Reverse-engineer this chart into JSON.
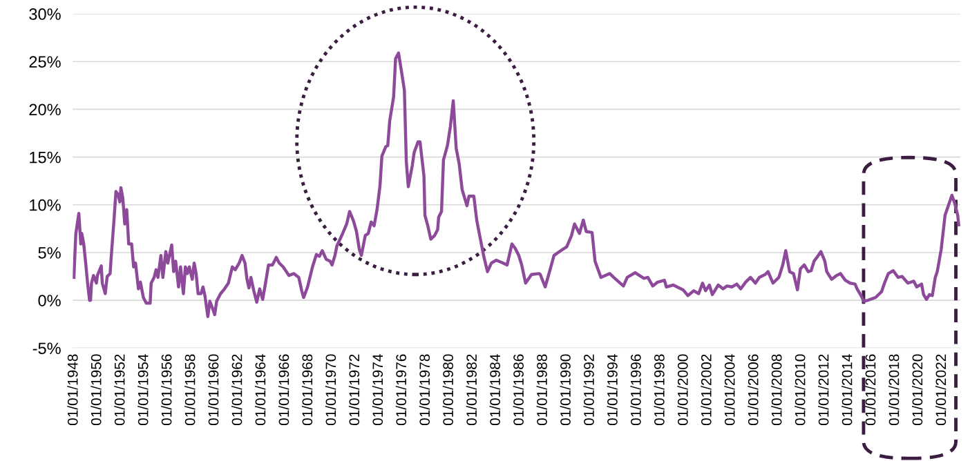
{
  "chart_data": {
    "type": "line",
    "x": [
      "1948-01",
      "1948-02",
      "1948-03",
      "1948-06",
      "1948-08",
      "1948-09",
      "1948-11",
      "1949-01",
      "1949-03",
      "1949-05",
      "1949-06",
      "1949-07",
      "1949-09",
      "1949-12",
      "1950-01",
      "1950-05",
      "1950-06",
      "1950-09",
      "1950-11",
      "1951-02",
      "1951-03",
      "1951-06",
      "1951-08",
      "1951-10",
      "1951-12",
      "1952-01",
      "1952-03",
      "1952-05",
      "1952-07",
      "1952-09",
      "1952-12",
      "1953-02",
      "1953-04",
      "1953-07",
      "1953-09",
      "1953-12",
      "1954-03",
      "1954-07",
      "1954-08",
      "1954-11",
      "1955-01",
      "1955-03",
      "1955-06",
      "1955-08",
      "1955-11",
      "1956-01",
      "1956-05",
      "1956-07",
      "1956-09",
      "1956-12",
      "1957-02",
      "1957-05",
      "1957-07",
      "1957-09",
      "1957-11",
      "1958-02",
      "1958-04",
      "1958-06",
      "1958-08",
      "1958-11",
      "1959-01",
      "1959-03",
      "1959-06",
      "1959-08",
      "1959-11",
      "1960-01",
      "1960-03",
      "1960-07",
      "1960-11",
      "1961-03",
      "1961-07",
      "1961-10",
      "1962-02",
      "1962-05",
      "1962-08",
      "1962-10",
      "1962-12",
      "1963-02",
      "1963-05",
      "1963-08",
      "1963-11",
      "1964-02",
      "1964-05",
      "1964-08",
      "1964-12",
      "1965-04",
      "1965-07",
      "1965-11",
      "1966-05",
      "1966-10",
      "1967-03",
      "1967-06",
      "1967-08",
      "1967-12",
      "1968-05",
      "1968-09",
      "1968-12",
      "1969-03",
      "1969-07",
      "1969-11",
      "1970-01",
      "1970-04",
      "1970-06",
      "1970-11",
      "1971-04",
      "1971-07",
      "1971-11",
      "1972-02",
      "1972-05",
      "1972-07",
      "1972-11",
      "1973-02",
      "1973-05",
      "1973-08",
      "1973-11",
      "1974-02",
      "1974-04",
      "1974-08",
      "1974-10",
      "1974-12",
      "1975-04",
      "1975-06",
      "1975-09",
      "1975-12",
      "1976-03",
      "1976-05",
      "1976-07",
      "1976-11",
      "1977-01",
      "1977-05",
      "1977-07",
      "1977-11",
      "1977-12",
      "1978-03",
      "1978-06",
      "1978-10",
      "1979-01",
      "1979-02",
      "1979-05",
      "1979-07",
      "1979-11",
      "1980-02",
      "1980-05",
      "1980-08",
      "1980-11",
      "1981-02",
      "1981-07",
      "1981-09",
      "1982-02",
      "1982-05",
      "1982-08",
      "1982-12",
      "1983-04",
      "1983-08",
      "1984-01",
      "1984-08",
      "1984-12",
      "1985-05",
      "1985-08",
      "1985-12",
      "1986-03",
      "1986-07",
      "1987-01",
      "1987-09",
      "1987-10",
      "1988-03",
      "1988-08",
      "1988-12",
      "1989-07",
      "1990-01",
      "1990-06",
      "1990-09",
      "1991-02",
      "1991-06",
      "1991-09",
      "1992-03",
      "1992-06",
      "1992-12",
      "1993-09",
      "1994-01",
      "1994-11",
      "1995-03",
      "1995-11",
      "1996-08",
      "1996-12",
      "1997-05",
      "1997-10",
      "1998-05",
      "1998-07",
      "1999-02",
      "1999-12",
      "2000-05",
      "2000-11",
      "2001-04",
      "2001-08",
      "2001-11",
      "2002-03",
      "2002-06",
      "2002-12",
      "2003-05",
      "2003-09",
      "2004-02",
      "2004-07",
      "2004-11",
      "2005-04",
      "2005-09",
      "2006-02",
      "2006-06",
      "2006-12",
      "2007-03",
      "2007-08",
      "2008-02",
      "2008-06",
      "2008-09",
      "2009-01",
      "2009-05",
      "2009-09",
      "2009-12",
      "2010-04",
      "2010-08",
      "2010-11",
      "2011-02",
      "2011-05",
      "2011-09",
      "2012-01",
      "2012-03",
      "2012-08",
      "2013-01",
      "2013-05",
      "2013-10",
      "2014-03",
      "2014-08",
      "2014-10",
      "2015-02",
      "2015-05",
      "2015-09",
      "2016-05",
      "2016-11",
      "2017-02",
      "2017-06",
      "2017-11",
      "2018-04",
      "2018-08",
      "2019-02",
      "2019-08",
      "2019-11",
      "2020-04",
      "2020-06",
      "2020-09",
      "2020-12",
      "2021-03",
      "2021-06",
      "2021-08",
      "2021-12",
      "2022-04",
      "2022-08",
      "2022-11",
      "2023-02",
      "2023-05",
      "2023-06"
    ],
    "series": [
      {
        "color": "#8e4a9a",
        "values": [
          2.4,
          4.9,
          7.0,
          9.1,
          5.9,
          7.0,
          5.9,
          3.9,
          1.8,
          0.0,
          0.0,
          1.8,
          2.6,
          1.8,
          2.6,
          3.6,
          1.8,
          0.7,
          2.5,
          2.8,
          4.3,
          8.4,
          11.4,
          11.1,
          10.3,
          11.8,
          10.7,
          8.0,
          9.5,
          5.9,
          5.9,
          3.5,
          3.9,
          1.2,
          1.9,
          0.3,
          -0.3,
          -0.3,
          1.8,
          2.4,
          3.2,
          2.4,
          4.7,
          2.4,
          5.1,
          3.9,
          5.8,
          3.0,
          4.1,
          1.4,
          3.5,
          0.7,
          3.5,
          2.8,
          3.5,
          2.2,
          3.9,
          2.8,
          0.7,
          0.7,
          1.4,
          0.5,
          -1.7,
          -0.1,
          -0.9,
          -1.5,
          -0.1,
          0.7,
          1.2,
          1.8,
          3.5,
          3.2,
          3.9,
          4.7,
          3.9,
          2.2,
          1.3,
          2.4,
          1.0,
          -0.2,
          1.2,
          0.1,
          1.8,
          3.7,
          3.7,
          4.5,
          3.9,
          3.5,
          2.6,
          2.8,
          2.4,
          1.0,
          0.3,
          1.4,
          3.5,
          4.8,
          4.6,
          5.2,
          4.3,
          4.1,
          3.7,
          4.7,
          5.7,
          6.8,
          8.0,
          9.3,
          8.3,
          7.2,
          5.3,
          4.7,
          6.8,
          7.0,
          8.2,
          7.8,
          9.5,
          12.0,
          15.1,
          16.1,
          16.2,
          18.8,
          21.3,
          25.3,
          25.9,
          24.0,
          22.0,
          14.5,
          11.9,
          14.1,
          15.5,
          16.6,
          16.6,
          13.0,
          8.9,
          7.8,
          6.4,
          6.8,
          7.4,
          8.7,
          9.3,
          14.7,
          16.2,
          18.2,
          20.9,
          15.9,
          14.3,
          11.6,
          9.9,
          10.9,
          10.9,
          8.4,
          6.8,
          4.7,
          3.0,
          3.9,
          4.2,
          3.9,
          3.7,
          5.9,
          5.5,
          4.7,
          3.7,
          1.8,
          2.7,
          2.8,
          2.7,
          1.4,
          3.2,
          4.7,
          5.2,
          5.6,
          6.8,
          8.0,
          7.0,
          8.4,
          7.2,
          7.1,
          4.1,
          2.4,
          2.8,
          2.4,
          1.5,
          2.4,
          2.9,
          2.3,
          2.4,
          1.5,
          1.9,
          2.1,
          1.4,
          1.6,
          1.1,
          0.5,
          1.0,
          0.7,
          1.8,
          1.0,
          1.6,
          0.6,
          1.6,
          1.2,
          1.5,
          1.4,
          1.7,
          1.2,
          1.9,
          2.4,
          1.8,
          2.4,
          2.7,
          3.0,
          1.8,
          2.4,
          3.7,
          5.2,
          3.0,
          2.8,
          1.1,
          3.3,
          3.7,
          3.0,
          3.1,
          4.1,
          4.5,
          5.1,
          4.1,
          3.0,
          2.2,
          2.6,
          2.8,
          2.1,
          1.8,
          1.7,
          1.2,
          0.5,
          -0.1,
          0.0,
          0.3,
          0.9,
          1.8,
          2.8,
          3.1,
          2.4,
          2.5,
          1.8,
          2.0,
          1.4,
          1.7,
          0.6,
          0.1,
          0.6,
          0.5,
          2.4,
          3.0,
          5.3,
          8.9,
          10.1,
          11.0,
          10.1,
          8.9,
          7.9
        ]
      }
    ],
    "xlim": [
      "1947-11-25",
      "2023-07-20"
    ],
    "ylim": [
      -5,
      30
    ],
    "yticks": [
      {
        "value": -5,
        "label": "-5%"
      },
      {
        "value": 0,
        "label": "0%"
      },
      {
        "value": 5,
        "label": "5%"
      },
      {
        "value": 10,
        "label": "10%"
      },
      {
        "value": 15,
        "label": "15%"
      },
      {
        "value": 20,
        "label": "20%"
      },
      {
        "value": 25,
        "label": "25%"
      },
      {
        "value": 30,
        "label": "30%"
      }
    ],
    "xticks": [
      {
        "value": "1948-01-01",
        "label": "01/01/1948"
      },
      {
        "value": "1950-01-01",
        "label": "01/01/1950"
      },
      {
        "value": "1952-01-01",
        "label": "01/01/1952"
      },
      {
        "value": "1954-01-01",
        "label": "01/01/1954"
      },
      {
        "value": "1956-01-01",
        "label": "01/01/1956"
      },
      {
        "value": "1958-01-01",
        "label": "01/01/1958"
      },
      {
        "value": "1960-01-01",
        "label": "01/01/1960"
      },
      {
        "value": "1962-01-01",
        "label": "01/01/1962"
      },
      {
        "value": "1964-01-01",
        "label": "01/01/1964"
      },
      {
        "value": "1966-01-01",
        "label": "01/01/1966"
      },
      {
        "value": "1968-01-01",
        "label": "01/01/1968"
      },
      {
        "value": "1970-01-01",
        "label": "01/01/1970"
      },
      {
        "value": "1972-01-01",
        "label": "01/01/1972"
      },
      {
        "value": "1974-01-01",
        "label": "01/01/1974"
      },
      {
        "value": "1976-01-01",
        "label": "01/01/1976"
      },
      {
        "value": "1978-01-01",
        "label": "01/01/1978"
      },
      {
        "value": "1980-01-01",
        "label": "01/01/1980"
      },
      {
        "value": "1982-01-01",
        "label": "01/01/1982"
      },
      {
        "value": "1984-01-01",
        "label": "01/01/1984"
      },
      {
        "value": "1986-01-01",
        "label": "01/01/1986"
      },
      {
        "value": "1988-01-01",
        "label": "01/01/1988"
      },
      {
        "value": "1990-01-01",
        "label": "01/01/1990"
      },
      {
        "value": "1992-01-01",
        "label": "01/01/1992"
      },
      {
        "value": "1994-01-01",
        "label": "01/01/1994"
      },
      {
        "value": "1996-01-01",
        "label": "01/01/1996"
      },
      {
        "value": "1998-01-01",
        "label": "01/01/1998"
      },
      {
        "value": "2000-01-01",
        "label": "01/01/2000"
      },
      {
        "value": "2002-01-01",
        "label": "01/01/2002"
      },
      {
        "value": "2004-01-01",
        "label": "01/01/2004"
      },
      {
        "value": "2006-01-01",
        "label": "01/01/2006"
      },
      {
        "value": "2008-01-01",
        "label": "01/01/2008"
      },
      {
        "value": "2010-01-01",
        "label": "01/01/2010"
      },
      {
        "value": "2012-01-01",
        "label": "01/01/2012"
      },
      {
        "value": "2014-01-01",
        "label": "01/01/2014"
      },
      {
        "value": "2016-01-01",
        "label": "01/01/2016"
      },
      {
        "value": "2018-01-01",
        "label": "01/01/2018"
      },
      {
        "value": "2020-01-01",
        "label": "01/01/2020"
      },
      {
        "value": "2022-01-01",
        "label": "01/01/2022"
      }
    ],
    "grid": "y",
    "line_style": "solid",
    "marker": "none"
  }
}
